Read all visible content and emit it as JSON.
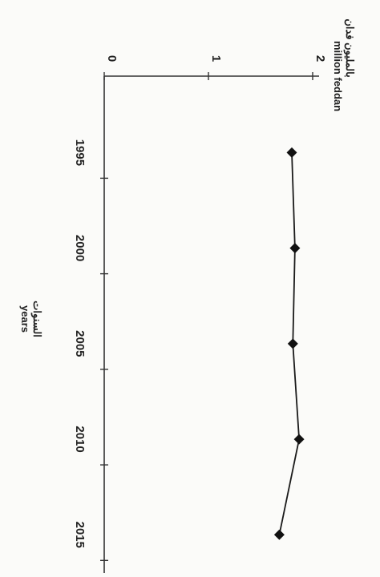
{
  "chart_data": {
    "type": "line",
    "x": [
      1995,
      2000,
      2005,
      2010,
      2015
    ],
    "series": [
      {
        "values": [
          1.8,
          1.83,
          1.81,
          1.87,
          1.68
        ]
      }
    ],
    "xlim": [
      1991,
      2017
    ],
    "ylim": [
      0,
      2
    ],
    "xticks": [
      1995,
      2000,
      2005,
      2010,
      2015
    ],
    "yticks": [
      0,
      1,
      2
    ],
    "xlabel_ar": "السنوات",
    "xlabel": "years",
    "ylabel_ar": "بالمليون فدان",
    "ylabel": "million feddan",
    "grid": false,
    "orientation": "rotated-90-clockwise"
  }
}
